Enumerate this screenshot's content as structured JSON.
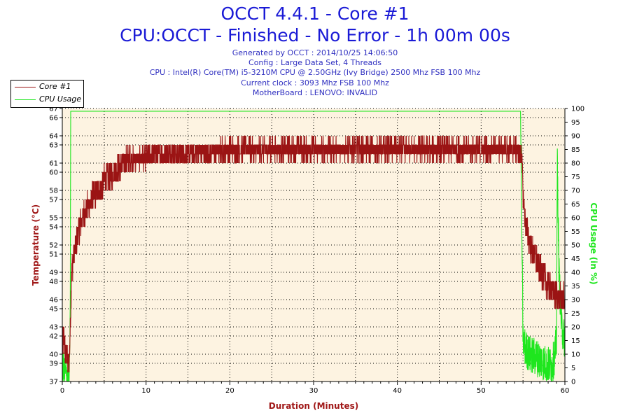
{
  "header": {
    "title": "OCCT 4.4.1 - Core #1",
    "subtitle": "CPU:OCCT - Finished - No Error - 1h 00m 00s",
    "info_lines": [
      "Generated by OCCT : 2014/10/25 14:06:50",
      "Config : Large Data Set, 4 Threads",
      "CPU : Intel(R) Core(TM) i5-3210M CPU @ 2.50GHz (Ivy Bridge) 2500 Mhz FSB 100 Mhz",
      "Current clock : 3093 Mhz FSB 100 Mhz",
      "MotherBoard : LENOVO: INVALID"
    ]
  },
  "colors": {
    "temperature": "#9b1414",
    "cpu_usage": "#1ee61e",
    "plot_bg": "#fdf3e1",
    "title": "#1a1ad6",
    "axis_label": "#a01818"
  },
  "chart_data": {
    "type": "line",
    "xlabel": "Duration (Minutes)",
    "ylabel": "Temperature (°C)",
    "y2label": "CPU Usage (in %)",
    "xlim": [
      0,
      60
    ],
    "ylim": [
      37,
      67
    ],
    "y2lim": [
      0,
      100
    ],
    "x_ticks": [
      0,
      10,
      20,
      30,
      40,
      50,
      60
    ],
    "y_ticks": [
      37,
      39,
      40,
      42,
      43,
      45,
      46,
      48,
      49,
      51,
      52,
      54,
      55,
      57,
      58,
      60,
      61,
      63,
      64,
      66,
      67
    ],
    "y2_ticks": [
      0,
      5,
      10,
      15,
      20,
      25,
      30,
      35,
      40,
      45,
      50,
      55,
      60,
      65,
      70,
      75,
      80,
      85,
      90,
      95,
      100
    ],
    "grid": true,
    "legend_position": "top-left",
    "series": [
      {
        "name": "Core #1",
        "axis": "left",
        "x": [
          0,
          0.2,
          0.4,
          0.6,
          0.8,
          0.95,
          1.1,
          1.4,
          1.8,
          2.2,
          2.7,
          3.2,
          3.8,
          4.4,
          5.0,
          5.6,
          6.2,
          6.8,
          7.4,
          8,
          9,
          10,
          11,
          12,
          15,
          20,
          25,
          30,
          35,
          40,
          45,
          50,
          54,
          54.8,
          55,
          55.2,
          55.6,
          56,
          56.5,
          57,
          57.5,
          58,
          58.5,
          59,
          59.5,
          60
        ],
        "values": [
          41,
          42,
          40,
          39.5,
          39,
          43,
          49,
          51,
          53,
          54.5,
          55.5,
          56.5,
          57.5,
          58,
          59,
          59.5,
          60,
          60.5,
          61,
          61.5,
          61.5,
          61.5,
          62,
          62,
          62,
          62.5,
          62.5,
          62.5,
          62.5,
          62.5,
          62.5,
          62.5,
          62.5,
          62,
          58,
          55,
          53,
          51.5,
          50.5,
          49.5,
          48.5,
          47.5,
          47,
          46.5,
          46,
          46
        ]
      },
      {
        "name": "CPU Usage",
        "axis": "right",
        "x": [
          0,
          0.3,
          0.6,
          0.85,
          0.95,
          1.0,
          10,
          20,
          30,
          40,
          50,
          54.7,
          54.8,
          55,
          55.3,
          55.8,
          56.5,
          57,
          57.5,
          58,
          58.5,
          58.8,
          59,
          59.1,
          59.3,
          59.6,
          60
        ],
        "values": [
          5,
          3,
          2,
          3,
          30,
          99,
          99,
          99,
          99,
          99,
          99,
          99,
          70,
          15,
          12,
          10,
          9,
          8,
          7,
          6,
          6,
          10,
          15,
          82,
          40,
          20,
          15
        ]
      }
    ]
  }
}
